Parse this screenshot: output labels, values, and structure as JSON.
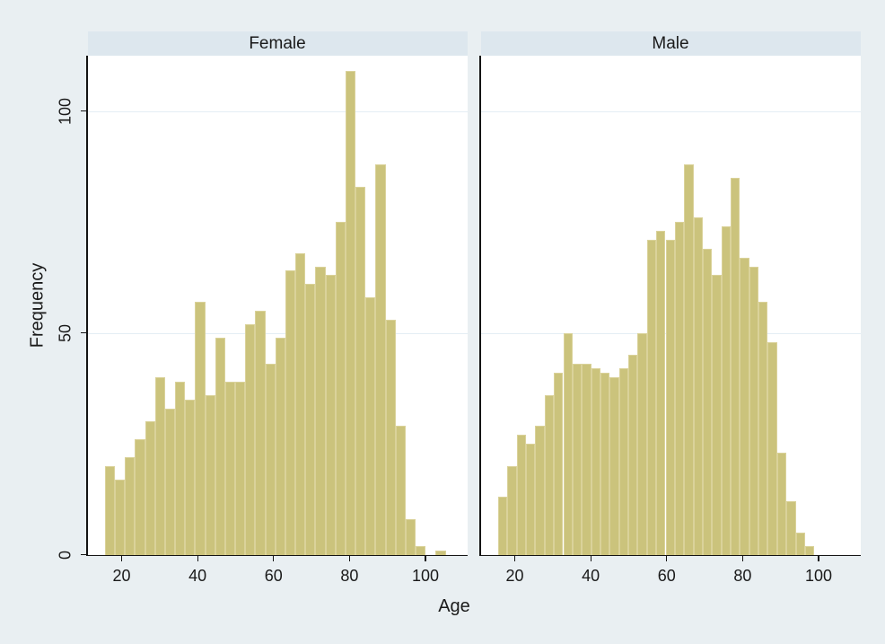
{
  "chart_data": {
    "type": "histogram",
    "title": "",
    "xlabel": "Age",
    "ylabel": "Frequency",
    "x_ticks": [
      20,
      40,
      60,
      80,
      100
    ],
    "y_ticks": [
      0,
      50,
      100
    ],
    "x_domain": [
      11,
      111
    ],
    "y_domain": [
      0,
      112.5
    ],
    "grid": "horizontal gridlines at y ticks 50 and 100",
    "legend_position": "none",
    "panels": "two facets side by side sharing y axis",
    "series": [
      {
        "name": "Female",
        "bin_start_age": 15.6,
        "bin_width_years": 2.64,
        "frequencies": [
          20,
          17,
          22,
          26,
          30,
          40,
          33,
          39,
          35,
          57,
          36,
          49,
          39,
          39,
          52,
          55,
          43,
          49,
          64,
          68,
          61,
          65,
          63,
          75,
          109,
          83,
          58,
          88,
          53,
          29,
          8,
          2,
          0,
          1
        ]
      },
      {
        "name": "Male",
        "bin_start_age": 15.6,
        "bin_width_years": 2.45,
        "frequencies": [
          13,
          20,
          27,
          25,
          29,
          36,
          41,
          50,
          43,
          43,
          42,
          41,
          40,
          42,
          45,
          50,
          71,
          73,
          71,
          75,
          88,
          76,
          69,
          63,
          74,
          85,
          67,
          65,
          57,
          48,
          23,
          12,
          5,
          2
        ]
      }
    ],
    "colors": {
      "bar_fill": "#cbc37c",
      "bar_outline": "#dad29a",
      "panel_header_bg": "#dde7ee",
      "plot_bg": "#ffffff",
      "outer_bg": "#e9eff2",
      "gridline": "#e4edf4",
      "axis": "#141414"
    }
  }
}
